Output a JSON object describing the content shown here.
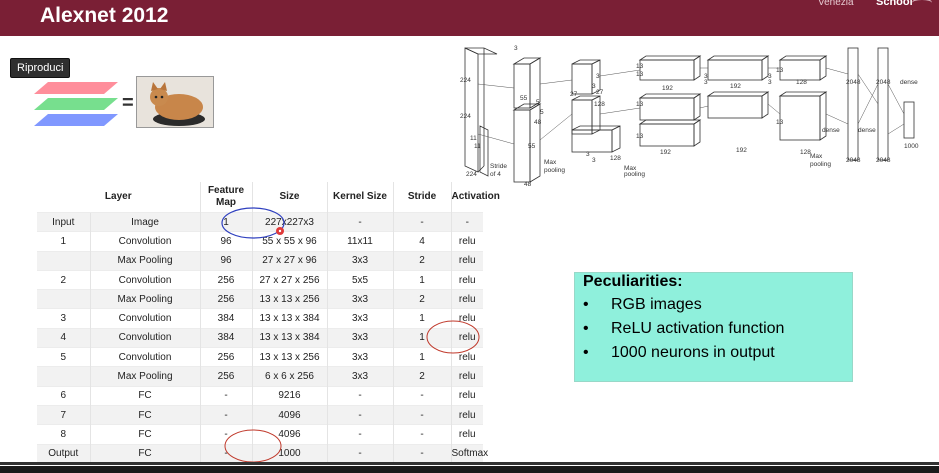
{
  "header": {
    "title": "Alexnet 2012",
    "right_text_1": "Venezia",
    "right_text_2": "School",
    "colors": {
      "band": "#7a1f35",
      "title": "#ffffff"
    }
  },
  "player": {
    "tooltip": "Riproduci"
  },
  "input_illustration": {
    "equals": "="
  },
  "diagram": {
    "labels": [
      "224",
      "224",
      "11",
      "11",
      "5",
      "5",
      "3",
      "3",
      "3",
      "3",
      "3",
      "3",
      "3",
      "3",
      "27",
      "27",
      "13",
      "13",
      "13",
      "13",
      "13",
      "13",
      "55",
      "55",
      "48",
      "128",
      "128",
      "192",
      "192",
      "192",
      "192",
      "128",
      "128",
      "2048",
      "2048",
      "2048",
      "2048",
      "dense",
      "dense",
      "dense",
      "1000",
      "Stride",
      "of 4",
      "Max",
      "pooling",
      "Max",
      "pooling",
      "Max",
      "pooling",
      "3",
      "224",
      "48"
    ]
  },
  "table": {
    "headers": [
      "Layer",
      "Feature Map",
      "Size",
      "Kernel Size",
      "Stride",
      "Activation"
    ],
    "rows": [
      [
        "Input",
        "Image",
        "1",
        "227x227x3",
        "-",
        "-",
        "-"
      ],
      [
        "1",
        "Convolution",
        "96",
        "55 x 55 x 96",
        "11x11",
        "4",
        "relu"
      ],
      [
        "",
        "Max Pooling",
        "96",
        "27 x 27 x 96",
        "3x3",
        "2",
        "relu"
      ],
      [
        "2",
        "Convolution",
        "256",
        "27 x 27 x 256",
        "5x5",
        "1",
        "relu"
      ],
      [
        "",
        "Max Pooling",
        "256",
        "13 x 13 x 256",
        "3x3",
        "2",
        "relu"
      ],
      [
        "3",
        "Convolution",
        "384",
        "13 x 13 x 384",
        "3x3",
        "1",
        "relu"
      ],
      [
        "4",
        "Convolution",
        "384",
        "13 x 13 x 384",
        "3x3",
        "1",
        "relu"
      ],
      [
        "5",
        "Convolution",
        "256",
        "13 x 13 x 256",
        "3x3",
        "1",
        "relu"
      ],
      [
        "",
        "Max Pooling",
        "256",
        "6 x 6 x 256",
        "3x3",
        "2",
        "relu"
      ],
      [
        "6",
        "FC",
        "-",
        "9216",
        "-",
        "-",
        "relu"
      ],
      [
        "7",
        "FC",
        "-",
        "4096",
        "-",
        "-",
        "relu"
      ],
      [
        "8",
        "FC",
        "-",
        "4096",
        "-",
        "-",
        "relu"
      ],
      [
        "Output",
        "FC",
        "-",
        "1000",
        "-",
        "-",
        "Softmax"
      ]
    ]
  },
  "peculiarities": {
    "title": "Peculiarities:",
    "bullet": "•",
    "items": [
      "RGB images",
      "ReLU activation function",
      "1000 neurons in output"
    ],
    "colors": {
      "box": "#8ff0dc"
    }
  },
  "annotations": {
    "colors": {
      "blue": "#2e3fbf",
      "red": "#c0392b"
    }
  }
}
